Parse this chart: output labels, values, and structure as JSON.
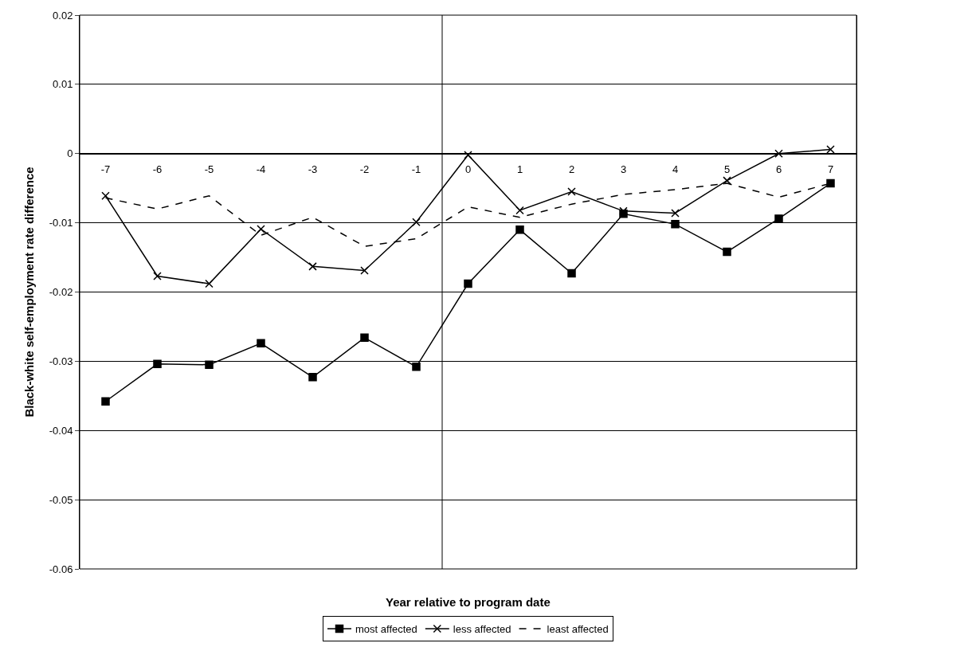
{
  "chart_data": {
    "type": "line",
    "x": [
      -7,
      -6,
      -5,
      -4,
      -3,
      -2,
      -1,
      0,
      1,
      2,
      3,
      4,
      5,
      6,
      7
    ],
    "xlim": [
      -7.5,
      7.5
    ],
    "xticks": [
      -7,
      -6,
      -5,
      -4,
      -3,
      -2,
      -1,
      0,
      1,
      2,
      3,
      4,
      5,
      6,
      7
    ],
    "ylim": [
      -0.06,
      0.02
    ],
    "yticks": [
      -0.06,
      -0.05,
      -0.04,
      -0.03,
      -0.02,
      -0.01,
      0,
      0.01,
      0.02
    ],
    "xlabel": "Year relative to program date",
    "ylabel": "Black-white self-employment rate difference",
    "grid": "y",
    "legend": "bottom",
    "ref_lines": [
      {
        "axis": "x",
        "value": -0.5,
        "color": "#000000",
        "line_style": "solid"
      }
    ],
    "series": [
      {
        "name": "most affected",
        "color": "#000000",
        "marker": "square",
        "line_style": "solid",
        "values": [
          -0.0358,
          -0.0304,
          -0.0305,
          -0.0274,
          -0.0323,
          -0.0266,
          -0.0308,
          -0.0188,
          -0.011,
          -0.0173,
          -0.0087,
          -0.0102,
          -0.0142,
          -0.0094,
          -0.0043
        ]
      },
      {
        "name": "less affected",
        "color": "#000000",
        "marker": "cross",
        "line_style": "solid",
        "values": [
          -0.0061,
          -0.0177,
          -0.0188,
          -0.0109,
          -0.0163,
          -0.0169,
          -0.0099,
          -0.0002,
          -0.0082,
          -0.0055,
          -0.0083,
          -0.0086,
          -0.0039,
          0.0,
          0.0006
        ]
      },
      {
        "name": "least affected",
        "color": "#000000",
        "marker": "none",
        "line_style": "dashed",
        "values": [
          -0.0064,
          -0.008,
          -0.0061,
          -0.0118,
          -0.0092,
          -0.0134,
          -0.0123,
          -0.0077,
          -0.0092,
          -0.0073,
          -0.0059,
          -0.0052,
          -0.0043,
          -0.0063,
          -0.0043
        ]
      }
    ]
  }
}
